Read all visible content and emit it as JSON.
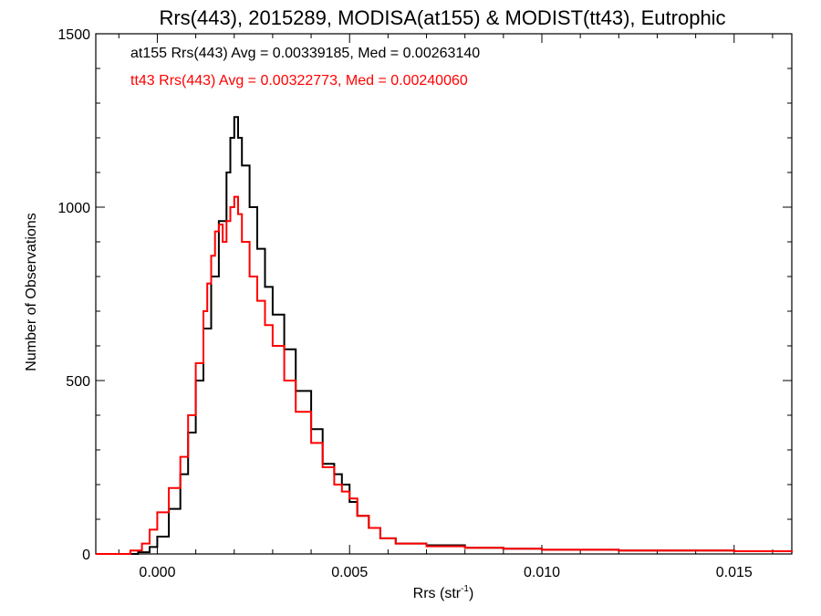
{
  "chart_data": {
    "type": "line",
    "title": "Rrs(443), 2015289, MODISA(at155) & MODIST(tt43), Eutrophic",
    "xlabel": "Rrs (str",
    "xlabel_sup": "-1",
    "xlabel_end": ")",
    "ylabel": "Number of Observations",
    "xlim": [
      -0.0016,
      0.0165
    ],
    "ylim": [
      0,
      1500
    ],
    "xticks": [
      {
        "value": 0.0,
        "label": "0.000"
      },
      {
        "value": 0.005,
        "label": "0.005"
      },
      {
        "value": 0.01,
        "label": "0.010"
      },
      {
        "value": 0.015,
        "label": "0.015"
      }
    ],
    "yticks": [
      {
        "value": 0,
        "label": "0"
      },
      {
        "value": 500,
        "label": "500"
      },
      {
        "value": 1000,
        "label": "1000"
      },
      {
        "value": 1500,
        "label": "1500"
      }
    ],
    "annotations": [
      {
        "text": "at155 Rrs(443) Avg = 0.00339185, Med = 0.00263140",
        "color": "#000000"
      },
      {
        "text": "tt43 Rrs(443) Avg = 0.00322773, Med = 0.00240060",
        "color": "#ff0000"
      }
    ],
    "series": [
      {
        "color": "#000000",
        "x": [
          -0.0016,
          -0.001,
          -0.0005,
          -0.0002,
          0.0,
          0.0003,
          0.0006,
          0.0008,
          0.001,
          0.0012,
          0.0014,
          0.0016,
          0.0018,
          0.0019,
          0.002,
          0.0021,
          0.0022,
          0.0024,
          0.0026,
          0.0028,
          0.003,
          0.0033,
          0.0036,
          0.004,
          0.0043,
          0.0046,
          0.0048,
          0.005,
          0.0052,
          0.0055,
          0.0058,
          0.0062,
          0.007,
          0.008,
          0.009,
          0.01,
          0.011,
          0.012,
          0.013,
          0.014,
          0.015,
          0.016,
          0.0165
        ],
        "y": [
          0,
          0,
          5,
          20,
          50,
          130,
          230,
          350,
          500,
          650,
          800,
          960,
          1100,
          1200,
          1260,
          1200,
          1120,
          1000,
          880,
          770,
          690,
          590,
          470,
          360,
          260,
          230,
          200,
          150,
          110,
          75,
          45,
          30,
          25,
          18,
          15,
          12,
          12,
          10,
          10,
          10,
          8,
          8,
          5
        ]
      },
      {
        "color": "#ff0000",
        "x": [
          -0.0016,
          -0.001,
          -0.0007,
          -0.0004,
          -0.0002,
          0.0,
          0.0003,
          0.0006,
          0.0008,
          0.001,
          0.0012,
          0.0013,
          0.0014,
          0.0015,
          0.0016,
          0.0017,
          0.0018,
          0.0019,
          0.002,
          0.0021,
          0.0022,
          0.0024,
          0.0026,
          0.0028,
          0.003,
          0.0033,
          0.0036,
          0.004,
          0.0043,
          0.0046,
          0.0048,
          0.005,
          0.0052,
          0.0055,
          0.0058,
          0.0062,
          0.007,
          0.008,
          0.009,
          0.01,
          0.011,
          0.012,
          0.013,
          0.014,
          0.015,
          0.016,
          0.0165
        ],
        "y": [
          0,
          0,
          10,
          30,
          70,
          120,
          190,
          280,
          400,
          550,
          700,
          780,
          860,
          930,
          950,
          900,
          960,
          1000,
          1030,
          980,
          900,
          800,
          730,
          660,
          600,
          500,
          410,
          320,
          250,
          200,
          180,
          160,
          110,
          75,
          45,
          30,
          22,
          18,
          15,
          12,
          12,
          10,
          10,
          10,
          8,
          8,
          5
        ]
      }
    ]
  }
}
